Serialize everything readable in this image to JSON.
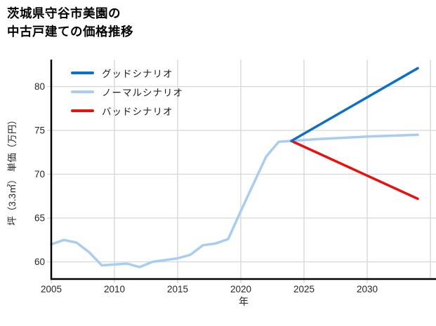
{
  "title": {
    "line1": "茨城県守谷市美園の",
    "line2": "中古戸建ての価格推移"
  },
  "chart_data": {
    "type": "line",
    "title": "茨城県守谷市美園の中古戸建ての価格推移",
    "xlabel": "年",
    "ylabel": "坪（3.3㎡） 単価（万円）",
    "x_ticks": [
      2005,
      2010,
      2015,
      2020,
      2025,
      2030
    ],
    "x_gridlines": [
      2005,
      2010,
      2015,
      2020,
      2025,
      2030,
      2035
    ],
    "y_ticks": [
      60,
      65,
      70,
      75,
      80
    ],
    "xlim": [
      2005,
      2035.4
    ],
    "ylim": [
      58,
      83.1
    ],
    "grid": true,
    "legend_position": "upper-left-inside",
    "colors": {
      "good": "#0e6fc8",
      "normal": "#a8cdf0",
      "bad": "#ea1010",
      "gridline": "#d6d6d6",
      "spine": "#000000",
      "tick_text": "#262626"
    },
    "series": [
      {
        "name": "グッドシナリオ",
        "color": "#0e6fc8",
        "points": [
          [
            2024,
            73.8
          ],
          [
            2034,
            82.1
          ]
        ]
      },
      {
        "name": "ノーマルシナリオ",
        "color": "#a8cdf0",
        "points": [
          [
            2005,
            62.0
          ],
          [
            2006,
            62.5
          ],
          [
            2007,
            62.2
          ],
          [
            2008,
            61.1
          ],
          [
            2009,
            59.6
          ],
          [
            2010,
            59.7
          ],
          [
            2011,
            59.8
          ],
          [
            2012,
            59.4
          ],
          [
            2013,
            60.0
          ],
          [
            2014,
            60.2
          ],
          [
            2015,
            60.4
          ],
          [
            2016,
            60.8
          ],
          [
            2017,
            61.9
          ],
          [
            2018,
            62.1
          ],
          [
            2019,
            62.6
          ],
          [
            2020,
            65.8
          ],
          [
            2021,
            68.9
          ],
          [
            2022,
            72.0
          ],
          [
            2023,
            73.7
          ],
          [
            2024,
            73.8
          ],
          [
            2026,
            74.0
          ],
          [
            2030,
            74.3
          ],
          [
            2034,
            74.5
          ]
        ]
      },
      {
        "name": "バッドシナリオ",
        "color": "#ea1010",
        "points": [
          [
            2024,
            73.8
          ],
          [
            2034,
            67.2
          ]
        ]
      }
    ]
  }
}
